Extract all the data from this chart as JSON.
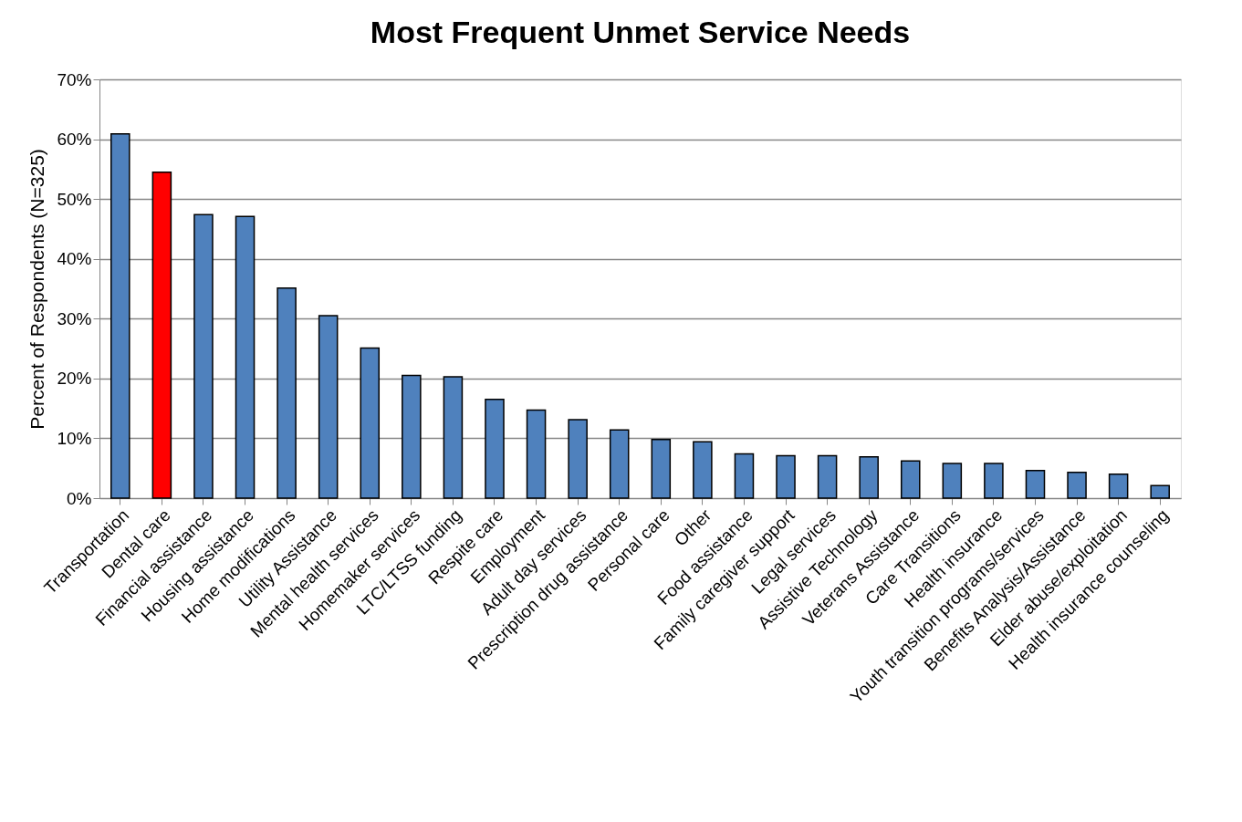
{
  "chart_data": {
    "type": "bar",
    "title": "Most Frequent Unmet Service Needs",
    "ylabel": "Percent of Respondents   (N=325)",
    "categories": [
      "Transportation",
      "Dental care",
      "Financial assistance",
      "Housing assistance",
      "Home modifications",
      "Utility Assistance",
      "Mental health services",
      "Homemaker services",
      "LTC/LTSS funding",
      "Respite care",
      "Employment",
      "Adult day services",
      "Prescription drug assistance",
      "Personal care",
      "Other",
      "Food assistance",
      "Family caregiver support",
      "Legal services",
      "Assistive Technology",
      "Veterans Assistance",
      "Care Transitions",
      "Health insurance",
      "Youth transition programs/services",
      "Benefits Analysis/Assistance",
      "Elder abuse/exploitation",
      "Health insurance counseling"
    ],
    "values": [
      60.9,
      54.5,
      47.4,
      47.1,
      35.1,
      30.5,
      25.1,
      20.5,
      20.3,
      16.5,
      14.7,
      13.1,
      11.4,
      9.8,
      9.4,
      7.4,
      7.1,
      7.1,
      6.9,
      6.2,
      5.8,
      5.8,
      4.6,
      4.3,
      4.0,
      2.1
    ],
    "colors": [
      "#4f81bd",
      "#ff0000",
      "#4f81bd",
      "#4f81bd",
      "#4f81bd",
      "#4f81bd",
      "#4f81bd",
      "#4f81bd",
      "#4f81bd",
      "#4f81bd",
      "#4f81bd",
      "#4f81bd",
      "#4f81bd",
      "#4f81bd",
      "#4f81bd",
      "#4f81bd",
      "#4f81bd",
      "#4f81bd",
      "#4f81bd",
      "#4f81bd",
      "#4f81bd",
      "#4f81bd",
      "#4f81bd",
      "#4f81bd",
      "#4f81bd",
      "#4f81bd"
    ],
    "ylim": [
      0,
      70
    ],
    "yticks": [
      {
        "value": 0,
        "label": "0%"
      },
      {
        "value": 10,
        "label": "10%"
      },
      {
        "value": 20,
        "label": "20%"
      },
      {
        "value": 30,
        "label": "30%"
      },
      {
        "value": 40,
        "label": "40%"
      },
      {
        "value": 50,
        "label": "50%"
      },
      {
        "value": 60,
        "label": "60%"
      },
      {
        "value": 70,
        "label": "70%"
      }
    ],
    "grid": "y"
  }
}
